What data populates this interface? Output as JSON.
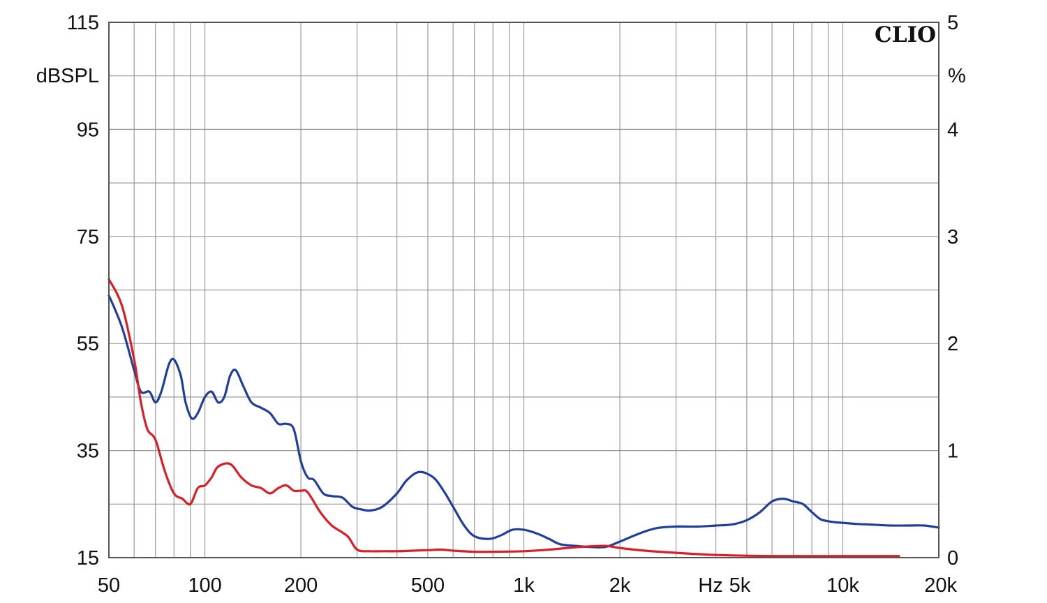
{
  "chart_data": {
    "type": "line",
    "x_scale": "log",
    "xlim": [
      50,
      20000
    ],
    "ylim": [
      15,
      115
    ],
    "y2lim": [
      0,
      5
    ],
    "grid": true,
    "brand": "CLIO",
    "ylabel": "dBSPL",
    "y2label": "%",
    "xunit": "Hz",
    "x_ticks": [
      {
        "value": 50,
        "label": "50"
      },
      {
        "value": 100,
        "label": "100"
      },
      {
        "value": 200,
        "label": "200"
      },
      {
        "value": 500,
        "label": "500"
      },
      {
        "value": 1000,
        "label": "1k"
      },
      {
        "value": 2000,
        "label": "2k"
      },
      {
        "value": 5000,
        "label": "5k"
      },
      {
        "value": 10000,
        "label": "10k"
      },
      {
        "value": 20000,
        "label": "20k"
      }
    ],
    "y_ticks": [
      {
        "value": 115,
        "label": "115"
      },
      {
        "value": 95,
        "label": "95"
      },
      {
        "value": 75,
        "label": "75"
      },
      {
        "value": 55,
        "label": "55"
      },
      {
        "value": 35,
        "label": "35"
      },
      {
        "value": 15,
        "label": "15"
      }
    ],
    "y2_ticks": [
      {
        "value": 5,
        "label": "5"
      },
      {
        "value": 4,
        "label": "4"
      },
      {
        "value": 3,
        "label": "3"
      },
      {
        "value": 2,
        "label": "2"
      },
      {
        "value": 1,
        "label": "1"
      },
      {
        "value": 0,
        "label": "0"
      }
    ],
    "series": [
      {
        "color": "#1f3f9a",
        "x": [
          50,
          55,
          60,
          63,
          67,
          70,
          73,
          77,
          80,
          84,
          87,
          91,
          95,
          100,
          105,
          110,
          115,
          120,
          125,
          132,
          140,
          150,
          160,
          170,
          180,
          190,
          200,
          210,
          220,
          235,
          250,
          270,
          290,
          310,
          330,
          360,
          400,
          430,
          470,
          520,
          560,
          600,
          650,
          700,
          780,
          850,
          920,
          1000,
          1100,
          1200,
          1300,
          1450,
          1600,
          1800,
          2000,
          2300,
          2600,
          3000,
          3500,
          4000,
          4500,
          5000,
          5500,
          6000,
          6500,
          7000,
          7500,
          8000,
          8500,
          9000,
          9500,
          10000,
          11000,
          12000,
          14000,
          16000,
          18000,
          20000
        ],
        "y": [
          64,
          58,
          50,
          46,
          46,
          44,
          46,
          51,
          52,
          49,
          44,
          41,
          42,
          45,
          46,
          44,
          45,
          49,
          50,
          47,
          44,
          43,
          42,
          40,
          40,
          39,
          33,
          30,
          29.5,
          27,
          26.5,
          26.2,
          24.5,
          24,
          23.8,
          24.5,
          27,
          29.5,
          31,
          30,
          27.5,
          24.5,
          21,
          19,
          18.5,
          19.2,
          20.2,
          20.2,
          19.5,
          18.5,
          17.5,
          17.2,
          17,
          17,
          18,
          19.5,
          20.5,
          20.8,
          20.8,
          21,
          21.2,
          22,
          23.5,
          25.5,
          26,
          25.5,
          25,
          23.5,
          22.2,
          21.8,
          21.6,
          21.5,
          21.3,
          21.2,
          21,
          21,
          21,
          20.6
        ]
      },
      {
        "color": "#d81f26",
        "x": [
          50,
          55,
          60,
          63,
          66,
          70,
          75,
          80,
          85,
          90,
          95,
          100,
          105,
          110,
          120,
          130,
          140,
          150,
          160,
          170,
          180,
          190,
          200,
          210,
          230,
          250,
          280,
          300,
          330,
          360,
          400,
          450,
          500,
          550,
          600,
          700,
          800,
          1000,
          1200,
          1500,
          1800,
          2000,
          2400,
          3000,
          4000,
          6000,
          10000,
          15000
        ],
        "y": [
          67,
          62,
          52,
          44,
          39,
          37,
          31,
          27,
          26,
          25,
          28,
          28.5,
          30,
          32,
          32.5,
          30,
          28.5,
          28,
          27,
          28,
          28.5,
          27.5,
          27.5,
          27.2,
          23.5,
          21,
          19,
          16.5,
          16.2,
          16.2,
          16.2,
          16.3,
          16.4,
          16.5,
          16.3,
          16.1,
          16.1,
          16.2,
          16.5,
          17,
          17.2,
          16.8,
          16.3,
          15.9,
          15.5,
          15.3,
          15.3,
          15.3
        ]
      }
    ]
  }
}
